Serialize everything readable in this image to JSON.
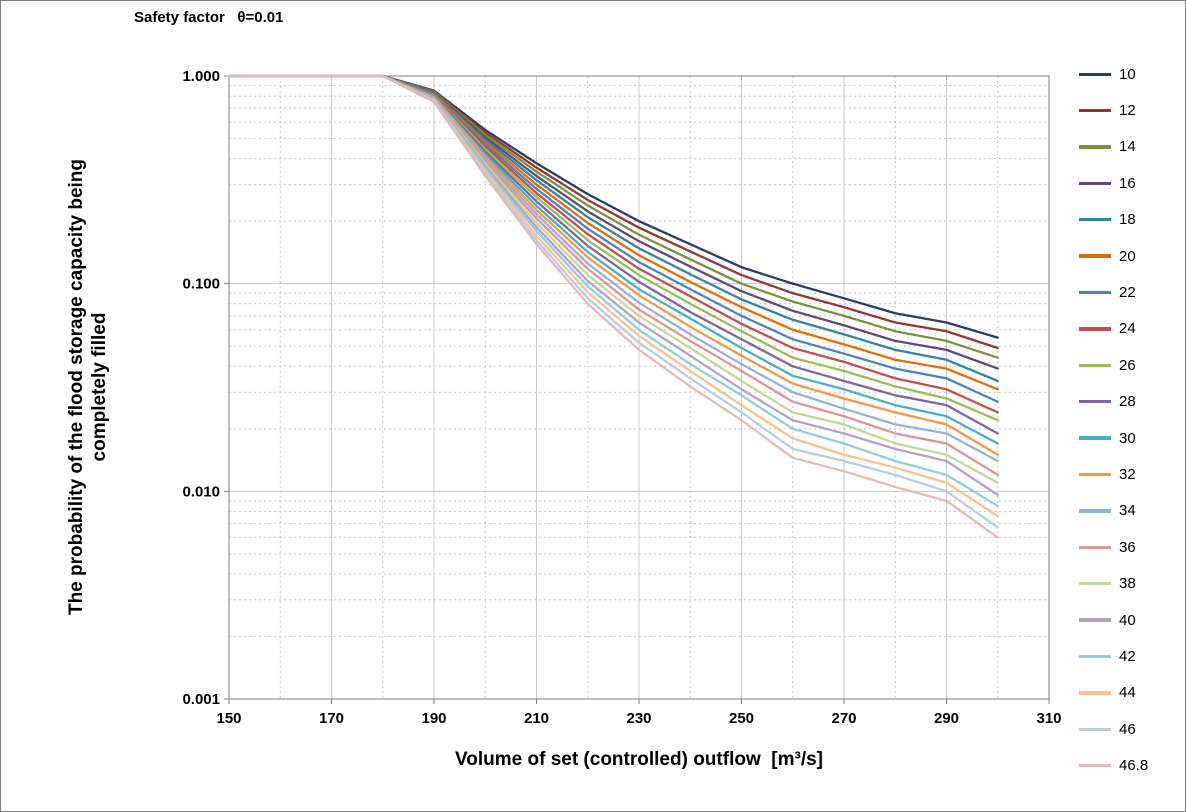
{
  "chart": {
    "title": "Safety factor   θ=0.01",
    "ylabel_line1": "The probability of the flood storage capacity being",
    "ylabel_line2": "completely filled",
    "xlabel": "Volume of set (controlled) outflow  [m³/s]"
  },
  "chart_data": {
    "type": "line",
    "title": "Safety factor θ=0.01",
    "xlabel": "Volume of set (controlled) outflow [m³/s]",
    "ylabel": "The probability of the flood storage capacity being completely filled",
    "y_scale": "log",
    "grid": true,
    "legend_position": "right",
    "xlim": [
      150,
      310
    ],
    "ylim": [
      0.001,
      1.0
    ],
    "x_ticks": [
      "150",
      "170",
      "190",
      "210",
      "230",
      "250",
      "270",
      "290",
      "310"
    ],
    "y_ticks": [
      {
        "v": 1.0,
        "label": "1.000"
      },
      {
        "v": 0.1,
        "label": "0.100"
      },
      {
        "v": 0.01,
        "label": "0.010"
      },
      {
        "v": 0.001,
        "label": "0.001"
      }
    ],
    "x": [
      150,
      180,
      190,
      200,
      210,
      220,
      230,
      240,
      250,
      260,
      270,
      280,
      290,
      300
    ],
    "series": [
      {
        "name": "10",
        "color": "#254061",
        "values": [
          1,
          1,
          0.85,
          0.55,
          0.38,
          0.27,
          0.2,
          0.155,
          0.12,
          0.1,
          0.085,
          0.072,
          0.065,
          0.055
        ]
      },
      {
        "name": "12",
        "color": "#943634",
        "values": [
          1,
          1,
          0.844,
          0.535,
          0.362,
          0.253,
          0.186,
          0.143,
          0.11,
          0.09,
          0.077,
          0.065,
          0.059,
          0.049
        ]
      },
      {
        "name": "14",
        "color": "#76923C",
        "values": [
          1,
          1,
          0.839,
          0.521,
          0.346,
          0.238,
          0.172,
          0.131,
          0.1,
          0.082,
          0.07,
          0.059,
          0.053,
          0.044
        ]
      },
      {
        "name": "16",
        "color": "#5F497A",
        "values": [
          1,
          1,
          0.833,
          0.507,
          0.33,
          0.223,
          0.16,
          0.121,
          0.092,
          0.074,
          0.063,
          0.053,
          0.048,
          0.039
        ]
      },
      {
        "name": "18",
        "color": "#31849B",
        "values": [
          1,
          1,
          0.828,
          0.494,
          0.315,
          0.209,
          0.148,
          0.111,
          0.084,
          0.067,
          0.057,
          0.048,
          0.043,
          0.034
        ]
      },
      {
        "name": "20",
        "color": "#E36C0A",
        "values": [
          1,
          1,
          0.822,
          0.481,
          0.3,
          0.196,
          0.137,
          0.102,
          0.077,
          0.06,
          0.051,
          0.043,
          0.039,
          0.031
        ]
      },
      {
        "name": "22",
        "color": "#4F81BD",
        "values": [
          1,
          1,
          0.817,
          0.468,
          0.286,
          0.184,
          0.127,
          0.094,
          0.07,
          0.054,
          0.046,
          0.039,
          0.035,
          0.027
        ]
      },
      {
        "name": "24",
        "color": "#C0504D",
        "values": [
          1,
          1,
          0.812,
          0.456,
          0.273,
          0.173,
          0.118,
          0.087,
          0.064,
          0.049,
          0.042,
          0.035,
          0.031,
          0.024
        ]
      },
      {
        "name": "26",
        "color": "#9BBB59",
        "values": [
          1,
          1,
          0.806,
          0.444,
          0.261,
          0.162,
          0.11,
          0.08,
          0.059,
          0.044,
          0.038,
          0.032,
          0.028,
          0.022
        ]
      },
      {
        "name": "28",
        "color": "#8064A2",
        "values": [
          1,
          1,
          0.801,
          0.432,
          0.249,
          0.152,
          0.102,
          0.073,
          0.054,
          0.04,
          0.034,
          0.029,
          0.026,
          0.019
        ]
      },
      {
        "name": "30",
        "color": "#4BACC6",
        "values": [
          1,
          1,
          0.796,
          0.42,
          0.237,
          0.142,
          0.094,
          0.068,
          0.049,
          0.036,
          0.031,
          0.026,
          0.023,
          0.017
        ]
      },
      {
        "name": "32",
        "color": "#F79646",
        "values": [
          1,
          1,
          0.79,
          0.409,
          0.226,
          0.134,
          0.088,
          0.062,
          0.045,
          0.033,
          0.028,
          0.024,
          0.021,
          0.015
        ]
      },
      {
        "name": "34",
        "color": "#95B3D7",
        "values": [
          1,
          1,
          0.785,
          0.398,
          0.216,
          0.125,
          0.081,
          0.057,
          0.041,
          0.03,
          0.025,
          0.021,
          0.019,
          0.014
        ]
      },
      {
        "name": "36",
        "color": "#D99694",
        "values": [
          1,
          1,
          0.78,
          0.388,
          0.206,
          0.118,
          0.075,
          0.053,
          0.038,
          0.027,
          0.023,
          0.019,
          0.017,
          0.012
        ]
      },
      {
        "name": "38",
        "color": "#C3D69B",
        "values": [
          1,
          1,
          0.775,
          0.378,
          0.196,
          0.11,
          0.07,
          0.049,
          0.034,
          0.024,
          0.021,
          0.017,
          0.015,
          0.011
        ]
      },
      {
        "name": "40",
        "color": "#B3A2C7",
        "values": [
          1,
          1,
          0.77,
          0.368,
          0.187,
          0.103,
          0.065,
          0.045,
          0.031,
          0.022,
          0.019,
          0.016,
          0.014,
          0.0096
        ]
      },
      {
        "name": "42",
        "color": "#92CDDC",
        "values": [
          1,
          1,
          0.765,
          0.358,
          0.179,
          0.097,
          0.06,
          0.041,
          0.029,
          0.02,
          0.017,
          0.014,
          0.012,
          0.0085
        ]
      },
      {
        "name": "44",
        "color": "#FAC08F",
        "values": [
          1,
          1,
          0.76,
          0.348,
          0.17,
          0.091,
          0.056,
          0.038,
          0.026,
          0.018,
          0.015,
          0.013,
          0.011,
          0.0076
        ]
      },
      {
        "name": "46",
        "color": "#B8CCE4",
        "values": [
          1,
          1,
          0.755,
          0.339,
          0.162,
          0.085,
          0.052,
          0.035,
          0.024,
          0.016,
          0.014,
          0.012,
          0.01,
          0.0067
        ]
      },
      {
        "name": "46.8",
        "color": "#E5B9B7",
        "values": [
          1,
          1,
          0.75,
          0.33,
          0.155,
          0.08,
          0.048,
          0.032,
          0.022,
          0.0145,
          0.0125,
          0.0105,
          0.009,
          0.006
        ]
      }
    ]
  }
}
